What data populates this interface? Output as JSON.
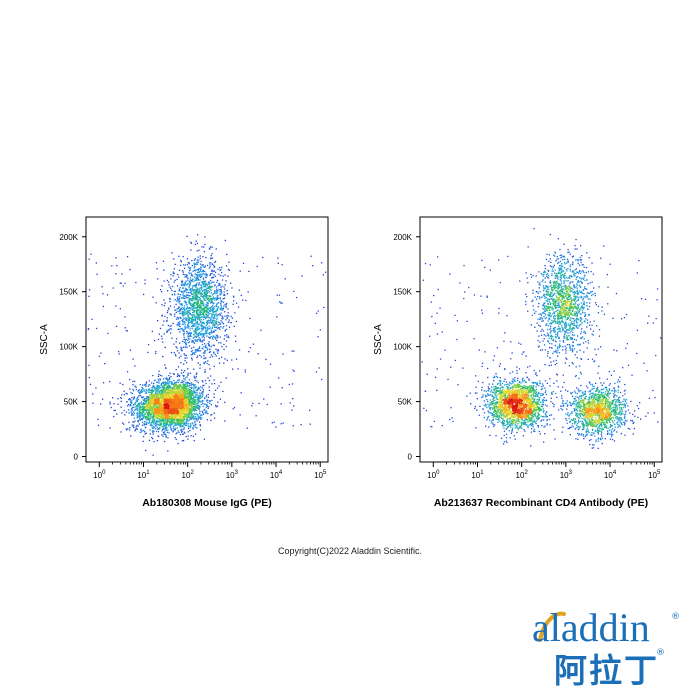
{
  "chart_data": [
    {
      "type": "scatter",
      "title": "",
      "xlabel": "Ab180308 Mouse IgG (PE)",
      "ylabel": "SSC-A",
      "x_scale": "log",
      "x_ticks": [
        1,
        10,
        100,
        1000,
        10000,
        100000
      ],
      "y_ticks": [
        0,
        50000,
        100000,
        150000,
        200000
      ],
      "y_tick_labels": [
        "0",
        "50K",
        "100K",
        "150K",
        "200K"
      ],
      "xlim": [
        0.5,
        150000
      ],
      "ylim": [
        -5000,
        218000
      ],
      "colormap": "density (blue → green → yellow → red)",
      "populations": [
        {
          "x_center": 50,
          "y_center": 48000,
          "events": 2600
        },
        {
          "x_center": 180,
          "y_center": 135000,
          "events": 1700
        },
        {
          "x_center": 18,
          "y_center": 45000,
          "events": 900
        }
      ]
    },
    {
      "type": "scatter",
      "title": "",
      "xlabel": "Ab213637 Recombinant CD4 Antibody (PE)",
      "ylabel": "SSC-A",
      "x_scale": "log",
      "x_ticks": [
        1,
        10,
        100,
        1000,
        10000,
        100000
      ],
      "y_ticks": [
        0,
        50000,
        100000,
        150000,
        200000
      ],
      "y_tick_labels": [
        "0",
        "50K",
        "100K",
        "150K",
        "200K"
      ],
      "xlim": [
        0.5,
        150000
      ],
      "ylim": [
        -5000,
        218000
      ],
      "colormap": "density (blue → green → yellow → red)",
      "populations": [
        {
          "x_center": 75,
          "y_center": 48000,
          "events": 1900
        },
        {
          "x_center": 900,
          "y_center": 138000,
          "events": 1300
        },
        {
          "x_center": 5200,
          "y_center": 42000,
          "events": 1300
        }
      ]
    }
  ],
  "footer": {
    "copyright": "Copyright(C)2022 Aladdin Scientific."
  },
  "logo": {
    "wordmark": "aladdin",
    "chinese": "阿拉丁",
    "registered": "®",
    "color": "#1a6fb8"
  }
}
